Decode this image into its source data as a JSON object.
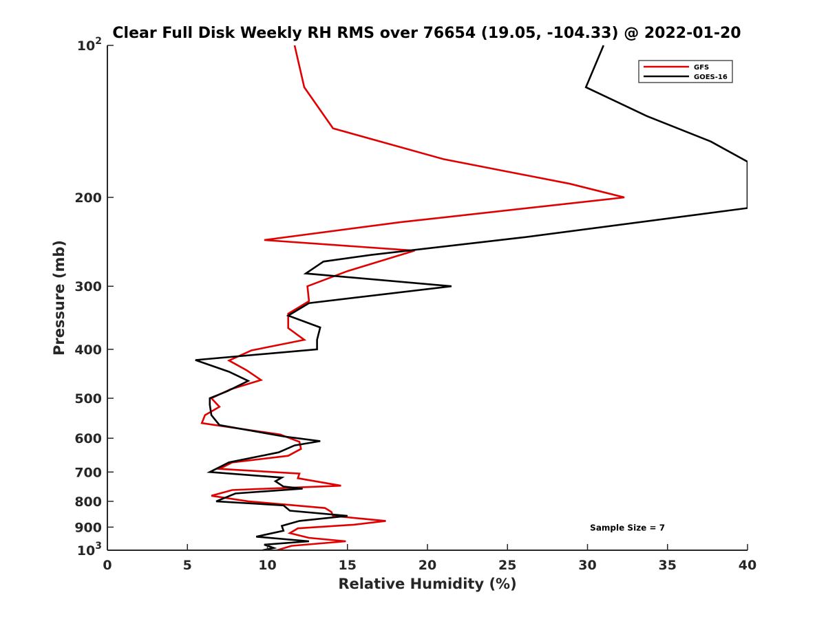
{
  "chart_data": {
    "type": "line",
    "title": "Clear Full Disk Weekly RH RMS over 76654 (19.05, -104.33) @ 2022-01-20",
    "xlabel": "Relative Humidity (%)",
    "ylabel": "Pressure (mb)",
    "xlim": [
      0,
      40
    ],
    "ylim": [
      100,
      1000
    ],
    "yscale": "log",
    "y_reversed": true,
    "x_ticks": [
      {
        "value": 0,
        "label": "0"
      },
      {
        "value": 5,
        "label": "5"
      },
      {
        "value": 10,
        "label": "10"
      },
      {
        "value": 15,
        "label": "15"
      },
      {
        "value": 20,
        "label": "20"
      },
      {
        "value": 25,
        "label": "25"
      },
      {
        "value": 30,
        "label": "30"
      },
      {
        "value": 35,
        "label": "35"
      },
      {
        "value": 40,
        "label": "40"
      }
    ],
    "y_ticks": [
      {
        "value": 100,
        "base": "10",
        "exp": "2"
      },
      {
        "value": 200,
        "label": "200"
      },
      {
        "value": 300,
        "label": "300"
      },
      {
        "value": 400,
        "label": "400"
      },
      {
        "value": 500,
        "label": "500"
      },
      {
        "value": 600,
        "label": "600"
      },
      {
        "value": 700,
        "label": "700"
      },
      {
        "value": 800,
        "label": "800"
      },
      {
        "value": 900,
        "label": "900"
      },
      {
        "value": 1000,
        "base": "10",
        "exp": "3"
      }
    ],
    "legend_position": "top-right",
    "series": [
      {
        "name": "GFS",
        "color": "#e00000",
        "x": [
          11.7,
          12.3,
          14.1,
          21.0,
          28.9,
          32.3,
          18.3,
          9.8,
          19.2,
          15.0,
          12.5,
          12.6,
          11.3,
          11.3,
          12.3,
          9.0,
          7.6,
          8.7,
          9.6,
          7.7,
          6.5,
          7.0,
          6.1,
          5.9,
          10.8,
          12.0,
          12.1,
          11.3,
          7.8,
          7.0,
          12.0,
          11.9,
          14.6,
          7.8,
          6.5,
          8.8,
          13.6,
          14.0,
          14.1,
          17.4,
          15.4,
          11.9,
          11.4,
          12.6,
          14.9,
          11.5,
          10.6
        ],
        "y": [
          100,
          121,
          146,
          168,
          188,
          200,
          224,
          243,
          255,
          280,
          300,
          321,
          340,
          363,
          383,
          402,
          421,
          440,
          460,
          480,
          500,
          520,
          540,
          560,
          590,
          610,
          630,
          650,
          670,
          690,
          705,
          720,
          745,
          760,
          780,
          800,
          825,
          840,
          855,
          875,
          890,
          905,
          925,
          945,
          960,
          980,
          1000
        ]
      },
      {
        "name": "GOES-16",
        "color": "#000000",
        "x": [
          31.0,
          29.9,
          33.7,
          37.7,
          40.0,
          40.0,
          26.0,
          16.5,
          13.5,
          12.4,
          21.5,
          12.6,
          11.3,
          13.3,
          13.1,
          13.1,
          5.5,
          7.6,
          8.8,
          7.5,
          6.4,
          6.4,
          6.5,
          7.0,
          11.0,
          13.3,
          11.7,
          10.7,
          7.6,
          6.4,
          10.9,
          10.5,
          11.0,
          12.2,
          8.0,
          6.8,
          11.0,
          11.4,
          15.0,
          12.0,
          10.9,
          11.0,
          9.3,
          12.6,
          9.8,
          10.4,
          9.7
        ],
        "y": [
          100,
          121,
          138,
          155,
          170,
          210,
          240,
          260,
          268,
          283,
          300,
          324,
          343,
          362,
          383,
          400,
          420,
          443,
          462,
          484,
          500,
          515,
          540,
          565,
          595,
          608,
          620,
          640,
          670,
          700,
          718,
          730,
          748,
          755,
          772,
          800,
          815,
          835,
          855,
          875,
          895,
          915,
          940,
          960,
          975,
          990,
          1000
        ]
      }
    ],
    "annotations": [
      {
        "text": "Sample Size = 7",
        "x": 32.5,
        "y": 900
      }
    ]
  }
}
